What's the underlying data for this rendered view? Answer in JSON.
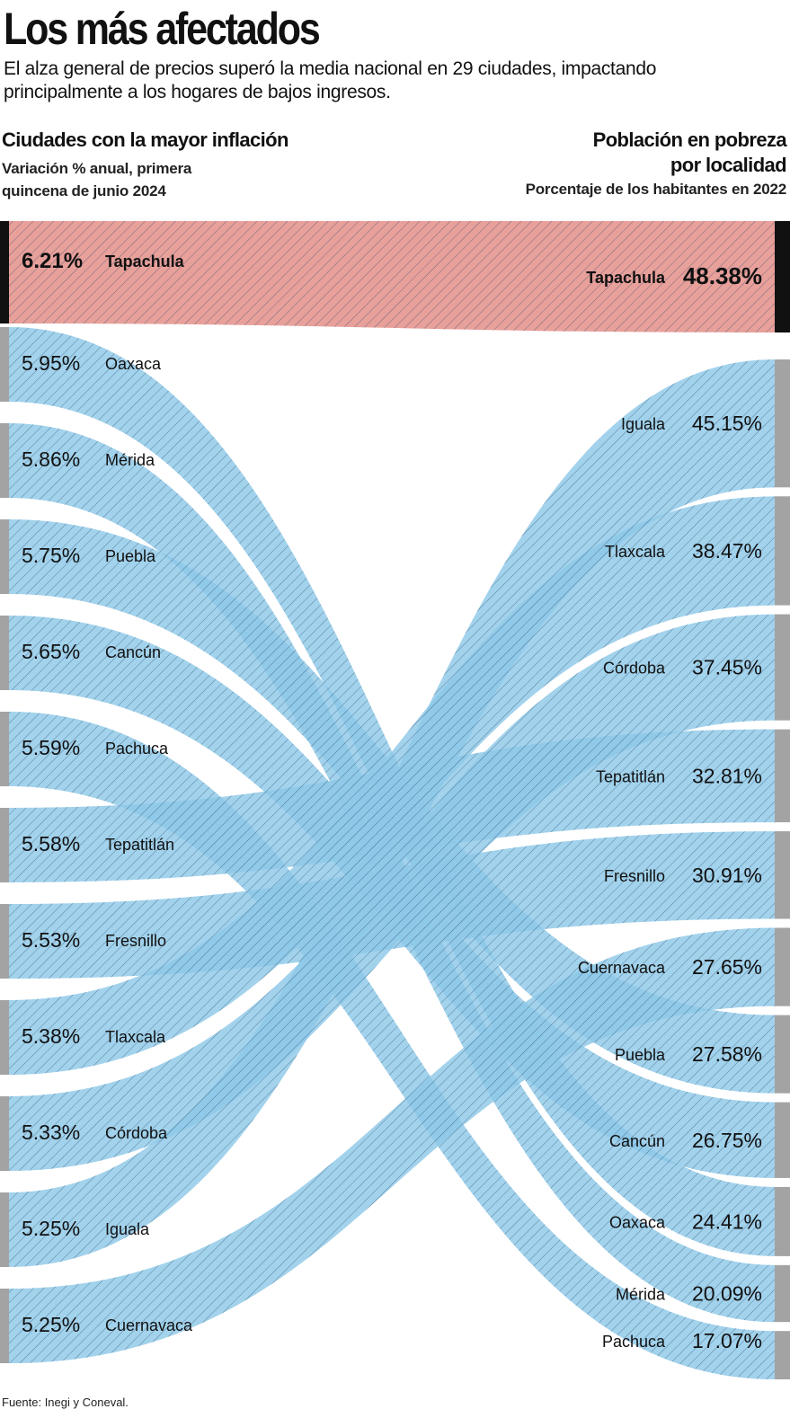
{
  "header": {
    "title": "Los más afectados",
    "subtitle": "El alza general de precios superó la media nacional en 29 ciudades, impactando principalmente a los hogares de bajos ingresos."
  },
  "left_panel": {
    "heading": "Ciudades con la mayor inflación",
    "subheading": "Variación % anual, primera quincena de junio 2024"
  },
  "right_panel": {
    "heading_line1": "Población en pobreza",
    "heading_line2": "por localidad",
    "subheading": "Porcentaje de los habitantes en 2022"
  },
  "source": "Fuente: Inegi y Coneval.",
  "colors": {
    "highlight_fill": "#e8a09b",
    "flow_fill": "#8ec8e8",
    "highlight_bar": "#111111",
    "bar": "#a3a3a3",
    "hatch": "#1d3d5c"
  },
  "chart_data": {
    "type": "sankey",
    "left_title": "Ciudades con la mayor inflación",
    "right_title": "Población en pobreza por localidad",
    "highlight": "Tapachula",
    "left": [
      {
        "city": "Tapachula",
        "value": 6.21,
        "label": "6.21%"
      },
      {
        "city": "Oaxaca",
        "value": 5.95,
        "label": "5.95%"
      },
      {
        "city": "Mérida",
        "value": 5.86,
        "label": "5.86%"
      },
      {
        "city": "Puebla",
        "value": 5.75,
        "label": "5.75%"
      },
      {
        "city": "Cancún",
        "value": 5.65,
        "label": "5.65%"
      },
      {
        "city": "Pachuca",
        "value": 5.59,
        "label": "5.59%"
      },
      {
        "city": "Tepatitlán",
        "value": 5.58,
        "label": "5.58%"
      },
      {
        "city": "Fresnillo",
        "value": 5.53,
        "label": "5.53%"
      },
      {
        "city": "Tlaxcala",
        "value": 5.38,
        "label": "5.38%"
      },
      {
        "city": "Córdoba",
        "value": 5.33,
        "label": "5.33%"
      },
      {
        "city": "Iguala",
        "value": 5.25,
        "label": "5.25%"
      },
      {
        "city": "Cuernavaca",
        "value": 5.25,
        "label": "5.25%"
      }
    ],
    "right": [
      {
        "city": "Tapachula",
        "value": 48.38,
        "label": "48.38%"
      },
      {
        "city": "Iguala",
        "value": 45.15,
        "label": "45.15%"
      },
      {
        "city": "Tlaxcala",
        "value": 38.47,
        "label": "38.47%"
      },
      {
        "city": "Córdoba",
        "value": 37.45,
        "label": "37.45%"
      },
      {
        "city": "Tepatitlán",
        "value": 32.81,
        "label": "32.81%"
      },
      {
        "city": "Fresnillo",
        "value": 30.91,
        "label": "30.91%"
      },
      {
        "city": "Cuernavaca",
        "value": 27.65,
        "label": "27.65%"
      },
      {
        "city": "Puebla",
        "value": 27.58,
        "label": "27.58%"
      },
      {
        "city": "Cancún",
        "value": 26.75,
        "label": "26.75%"
      },
      {
        "city": "Oaxaca",
        "value": 24.41,
        "label": "24.41%"
      },
      {
        "city": "Mérida",
        "value": 20.09,
        "label": "20.09%"
      },
      {
        "city": "Pachuca",
        "value": 17.07,
        "label": "17.07%"
      }
    ]
  }
}
